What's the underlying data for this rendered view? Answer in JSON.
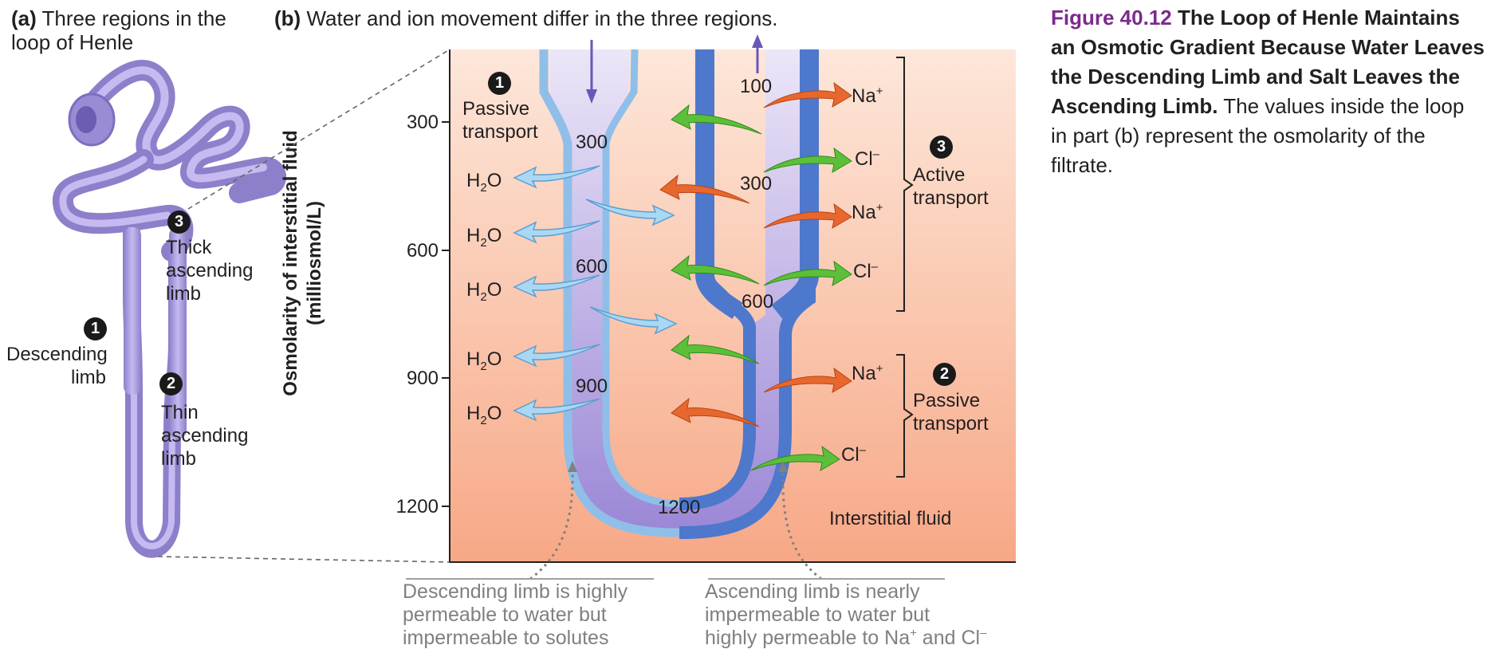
{
  "part_a": {
    "letter": "(a)",
    "title": "Three regions in the loop of Henle",
    "labels": {
      "thick": {
        "num": "3",
        "text": "Thick ascending limb"
      },
      "descending": {
        "num": "1",
        "text": "Descending limb"
      },
      "thin": {
        "num": "2",
        "text": "Thin ascending limb"
      }
    }
  },
  "part_b": {
    "letter": "(b)",
    "title": "Water and ion movement differ in the three regions.",
    "y_axis_label": "Osmolarity of interstitial fluid (milliosmol/L)",
    "y_ticks": [
      "300",
      "600",
      "900",
      "1200"
    ],
    "filtrate_values": {
      "top_ascending": "100",
      "desc_300": "300",
      "asc_300": "300",
      "desc_600": "600",
      "asc_600": "600",
      "desc_900": "900",
      "bottom_1200": "1200"
    },
    "water": "H",
    "water_sub": "2",
    "water_o": "O",
    "ions": {
      "na": "Na",
      "na_charge": "+",
      "cl": "Cl",
      "cl_charge": "–"
    },
    "region_labels": {
      "passive_top": {
        "num": "1",
        "text_1": "Passive",
        "text_2": "transport"
      },
      "active": {
        "num": "3",
        "text_1": "Active",
        "text_2": "transport"
      },
      "passive_bottom": {
        "num": "2",
        "text_1": "Passive",
        "text_2": "transport"
      }
    },
    "interstitial_label": "Interstitial fluid",
    "note_descending": {
      "line1": "Descending limb is highly",
      "line2": "permeable to water but",
      "line3": "impermeable to solutes"
    },
    "note_ascending": {
      "line1": "Ascending limb is nearly",
      "line2": "impermeable to water but",
      "line3_pre": "highly permeable to Na",
      "line3_mid": " and Cl"
    }
  },
  "caption": {
    "figure_number": "Figure 40.12",
    "title": "The Loop of Henle Maintains an Osmotic Gradient Because Water Leaves the Descending Limb and Salt Leaves the Ascending Limb.",
    "body": "The values inside the loop in part (b) represent the osmolarity of the filtrate."
  },
  "colors": {
    "fluid_top": "#fde7da",
    "fluid_bottom": "#f7a886",
    "tubule_purple": "#a797d8",
    "descending_wall": "#8fbfe8",
    "ascending_wall": "#4d78cc",
    "water_arrow": "#a9d8f5",
    "na_arrow": "#e8672e",
    "cl_arrow": "#5cbf3a",
    "caption_accent": "#7b2a8c"
  }
}
